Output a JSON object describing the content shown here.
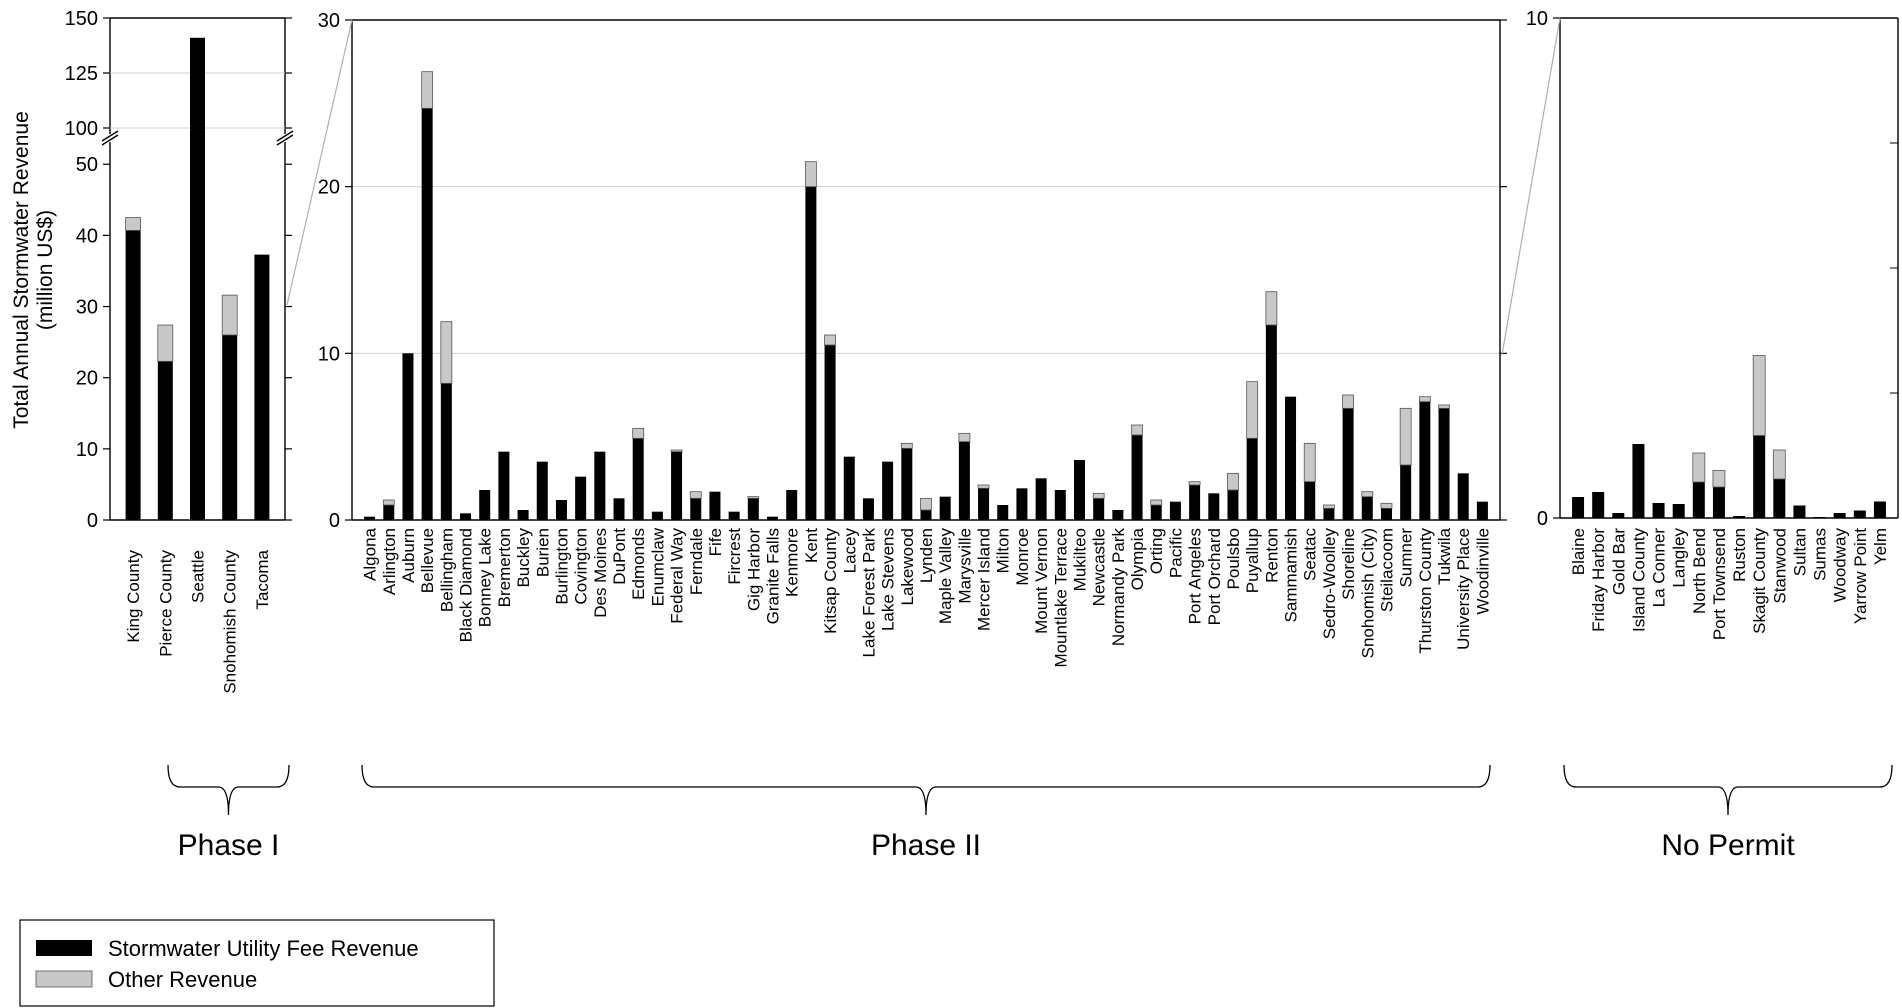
{
  "chart_data": {
    "type": "bar",
    "stacked": true,
    "ylabel_line1": "Total Annual Stormwater Revenue",
    "ylabel_line2": "(million US$)",
    "series_names": [
      "Stormwater Utility Fee Revenue",
      "Other Revenue"
    ],
    "colors": {
      "fee": "#000000",
      "other": "#c8c8c8"
    },
    "legend_position": "bottom-left",
    "panels": [
      {
        "group_label": "Phase I",
        "ylim": [
          0,
          150
        ],
        "yaxis_break": [
          52,
          100
        ],
        "yticks_lower": [
          "0",
          "10",
          "20",
          "30",
          "40",
          "50"
        ],
        "yticks_upper": [
          "100",
          "125",
          "150"
        ],
        "categories": [
          "King County",
          "Pierce County",
          "Seattle",
          "Snohomish County",
          "Tacoma"
        ],
        "fee": [
          40.7,
          22.3,
          141,
          26.0,
          37.3
        ],
        "other": [
          1.8,
          5.1,
          0,
          5.6,
          0
        ]
      },
      {
        "group_label": "Phase II",
        "ylim": [
          0,
          30
        ],
        "yticks": [
          "0",
          "10",
          "20",
          "30"
        ],
        "categories": [
          "Algona",
          "Arlington",
          "Auburn",
          "Bellevue",
          "Bellingham",
          "Black Diamond",
          "Bonney Lake",
          "Bremerton",
          "Buckley",
          "Burien",
          "Burlington",
          "Covington",
          "Des Moines",
          "DuPont",
          "Edmonds",
          "Enumclaw",
          "Federal Way",
          "Ferndale",
          "Fife",
          "Fircrest",
          "Gig Harbor",
          "Granite Falls",
          "Kenmore",
          "Kent",
          "Kitsap County",
          "Lacey",
          "Lake Forest Park",
          "Lake Stevens",
          "Lakewood",
          "Lynden",
          "Maple Valley",
          "Marysville",
          "Mercer Island",
          "Milton",
          "Monroe",
          "Mount Vernon",
          "Mountlake Terrace",
          "Mukilteo",
          "Newcastle",
          "Normandy Park",
          "Olympia",
          "Orting",
          "Pacific",
          "Port Angeles",
          "Port Orchard",
          "Poulsbo",
          "Puyallup",
          "Renton",
          "Sammamish",
          "Seatac",
          "Sedro-Woolley",
          "Shoreline",
          "Snohomish (City)",
          "Steilacoom",
          "Sumner",
          "Thurston County",
          "Tukwila",
          "University Place",
          "Woodinville"
        ],
        "fee": [
          0.2,
          0.9,
          10.0,
          24.7,
          8.2,
          0.4,
          1.8,
          4.1,
          0.6,
          3.5,
          1.2,
          2.6,
          4.1,
          1.3,
          4.9,
          0.5,
          4.1,
          1.3,
          1.7,
          0.5,
          1.3,
          0.2,
          1.8,
          20.0,
          10.5,
          3.8,
          1.3,
          3.5,
          4.3,
          0.6,
          1.4,
          4.7,
          1.9,
          0.9,
          1.9,
          2.5,
          1.8,
          3.6,
          1.3,
          0.6,
          5.1,
          0.9,
          1.1,
          2.1,
          1.6,
          1.8,
          4.9,
          11.7,
          7.4,
          2.3,
          0.7,
          6.7,
          1.4,
          0.7,
          3.3,
          7.1,
          6.7,
          2.8,
          1.1
        ],
        "other": [
          0,
          0.3,
          0,
          2.2,
          3.7,
          0,
          0,
          0,
          0,
          0,
          0,
          0,
          0,
          0,
          0.6,
          0,
          0.1,
          0.4,
          0,
          0,
          0.1,
          0,
          0,
          1.5,
          0.6,
          0,
          0,
          0,
          0.3,
          0.7,
          0,
          0.5,
          0.2,
          0,
          0,
          0,
          0,
          0,
          0.3,
          0,
          0.6,
          0.3,
          0,
          0.2,
          0,
          1.0,
          3.4,
          2.0,
          0,
          2.3,
          0.2,
          0.8,
          0.3,
          0.3,
          3.4,
          0.3,
          0.2,
          0,
          0
        ]
      },
      {
        "group_label": "No Permit",
        "ylim": [
          0,
          10
        ],
        "yticks": [
          "0",
          "10"
        ],
        "categories": [
          "Blaine",
          "Friday Harbor",
          "Gold Bar",
          "Island County",
          "La Conner",
          "Langley",
          "North Bend",
          "Port Townsend",
          "Ruston",
          "Skagit County",
          "Stanwood",
          "Sultan",
          "Sumas",
          "Woodway",
          "Yarrow Point",
          "Yelm"
        ],
        "fee": [
          0.42,
          0.52,
          0.1,
          1.48,
          0.3,
          0.28,
          0.72,
          0.62,
          0.04,
          1.65,
          0.78,
          0.25,
          0.02,
          0.1,
          0.15,
          0.33
        ],
        "other": [
          0,
          0,
          0,
          0,
          0,
          0,
          0.58,
          0.33,
          0,
          1.6,
          0.58,
          0,
          0,
          0,
          0,
          0
        ]
      }
    ]
  }
}
